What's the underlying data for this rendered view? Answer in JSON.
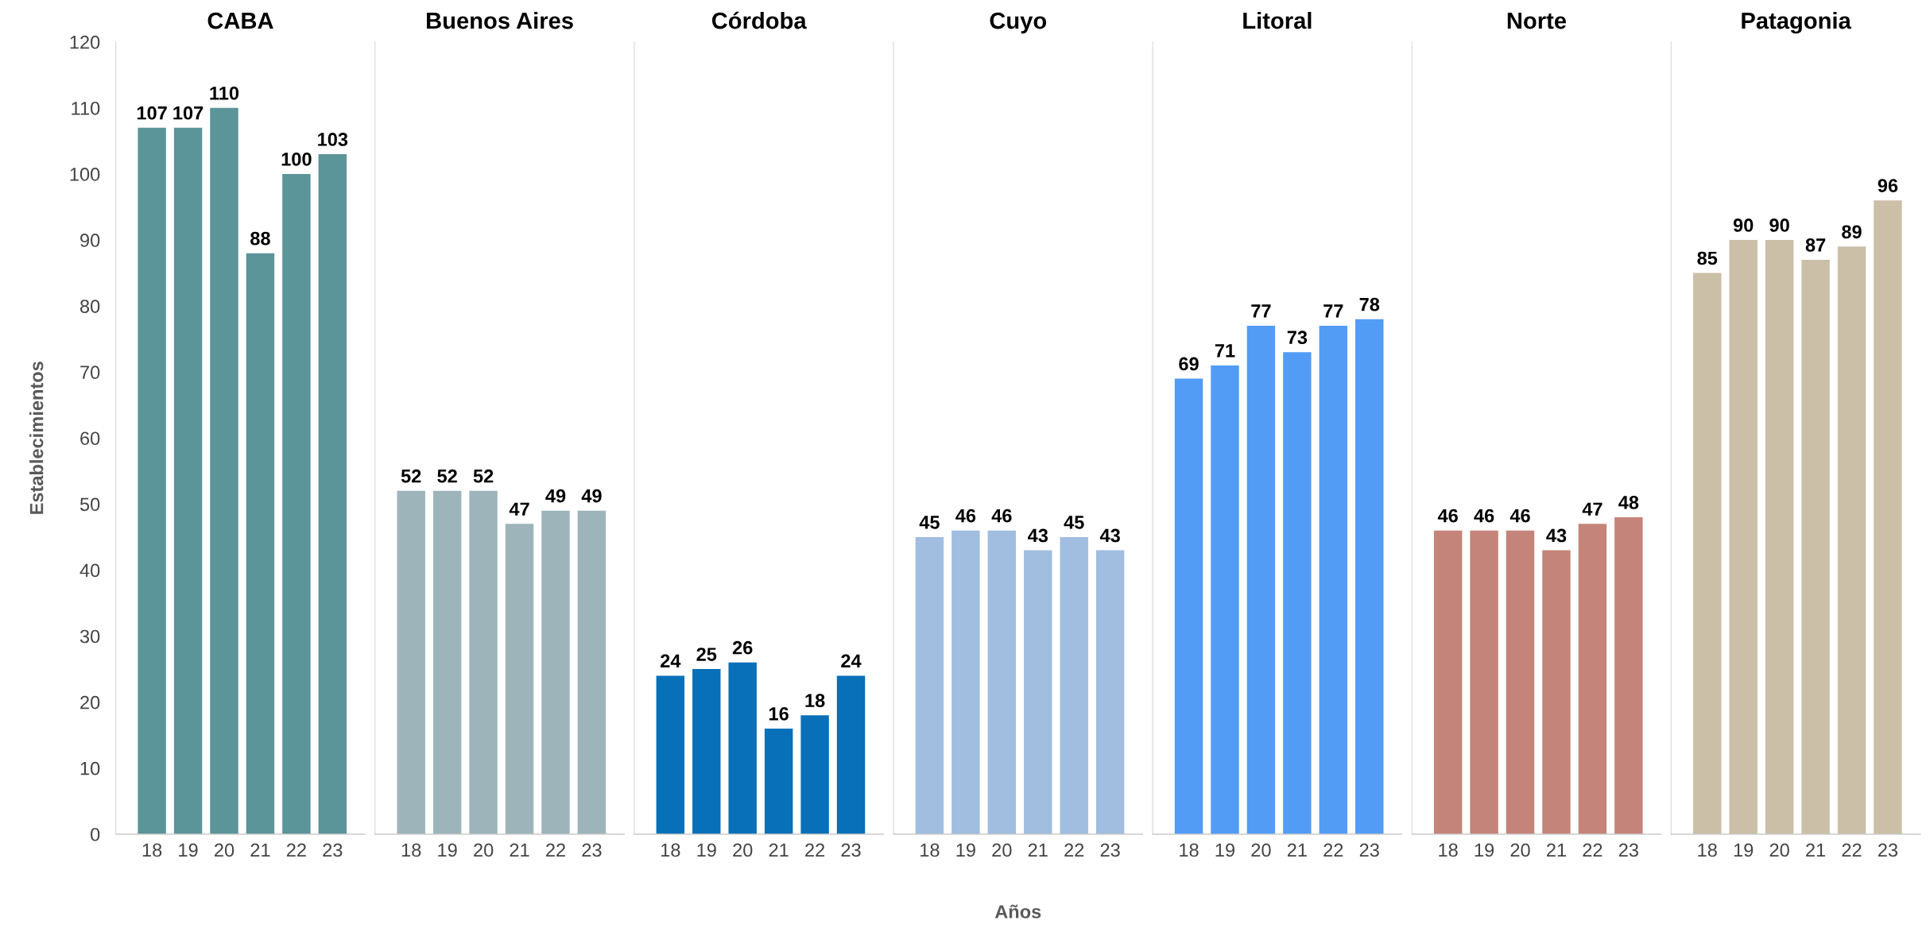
{
  "chart_data": [
    {
      "type": "bar",
      "title": "CABA",
      "ylabel": "Establecimientos",
      "categories": [
        "18",
        "19",
        "20",
        "21",
        "22",
        "23"
      ],
      "values": [
        107,
        107,
        110,
        88,
        100,
        103
      ],
      "color": "#5b9499",
      "ylim": [
        0,
        120
      ],
      "yticks": [
        0,
        10,
        20,
        30,
        40,
        50,
        60,
        70,
        80,
        90,
        100,
        110,
        120
      ],
      "data_labels": true,
      "grid": false,
      "legend": false
    },
    {
      "type": "bar",
      "title": "Buenos Aires",
      "categories": [
        "18",
        "19",
        "20",
        "21",
        "22",
        "23"
      ],
      "values": [
        52,
        52,
        52,
        47,
        49,
        49
      ],
      "color": "#9db5ba",
      "ylim": [
        0,
        120
      ],
      "yticks": [
        0,
        10,
        20,
        30,
        40,
        50,
        60,
        70,
        80,
        90,
        100,
        110,
        120
      ],
      "tick_labels": "x",
      "data_labels": true,
      "grid": false,
      "legend": false
    },
    {
      "type": "bar",
      "title": "Córdoba",
      "categories": [
        "18",
        "19",
        "20",
        "21",
        "22",
        "23"
      ],
      "values": [
        24,
        25,
        26,
        16,
        18,
        24
      ],
      "color": "#0870b8",
      "ylim": [
        0,
        120
      ],
      "yticks": [
        0,
        10,
        20,
        30,
        40,
        50,
        60,
        70,
        80,
        90,
        100,
        110,
        120
      ],
      "tick_labels": "x",
      "data_labels": true,
      "grid": false,
      "legend": false
    },
    {
      "type": "bar",
      "title": "Cuyo",
      "xlabel": "Años",
      "categories": [
        "18",
        "19",
        "20",
        "21",
        "22",
        "23"
      ],
      "values": [
        45,
        46,
        46,
        43,
        45,
        43
      ],
      "color": "#a1bde0",
      "ylim": [
        0,
        120
      ],
      "yticks": [
        0,
        10,
        20,
        30,
        40,
        50,
        60,
        70,
        80,
        90,
        100,
        110,
        120
      ],
      "tick_labels": "x",
      "data_labels": true,
      "grid": false,
      "legend": false
    },
    {
      "type": "bar",
      "title": "Litoral",
      "categories": [
        "18",
        "19",
        "20",
        "21",
        "22",
        "23"
      ],
      "values": [
        69,
        71,
        77,
        73,
        77,
        78
      ],
      "color": "#529cf5",
      "ylim": [
        0,
        120
      ],
      "yticks": [
        0,
        10,
        20,
        30,
        40,
        50,
        60,
        70,
        80,
        90,
        100,
        110,
        120
      ],
      "tick_labels": "x",
      "data_labels": true,
      "grid": false,
      "legend": false
    },
    {
      "type": "bar",
      "title": "Norte",
      "categories": [
        "18",
        "19",
        "20",
        "21",
        "22",
        "23"
      ],
      "values": [
        46,
        46,
        46,
        43,
        47,
        48
      ],
      "color": "#c5847a",
      "ylim": [
        0,
        120
      ],
      "yticks": [
        0,
        10,
        20,
        30,
        40,
        50,
        60,
        70,
        80,
        90,
        100,
        110,
        120
      ],
      "tick_labels": "x",
      "data_labels": true,
      "grid": false,
      "legend": false
    },
    {
      "type": "bar",
      "title": "Patagonia",
      "categories": [
        "18",
        "19",
        "20",
        "21",
        "22",
        "23"
      ],
      "values": [
        85,
        90,
        90,
        87,
        89,
        96
      ],
      "color": "#cbbfa8",
      "ylim": [
        0,
        120
      ],
      "yticks": [
        0,
        10,
        20,
        30,
        40,
        50,
        60,
        70,
        80,
        90,
        100,
        110,
        120
      ],
      "tick_labels": "x",
      "data_labels": true,
      "grid": false,
      "legend": false
    }
  ]
}
